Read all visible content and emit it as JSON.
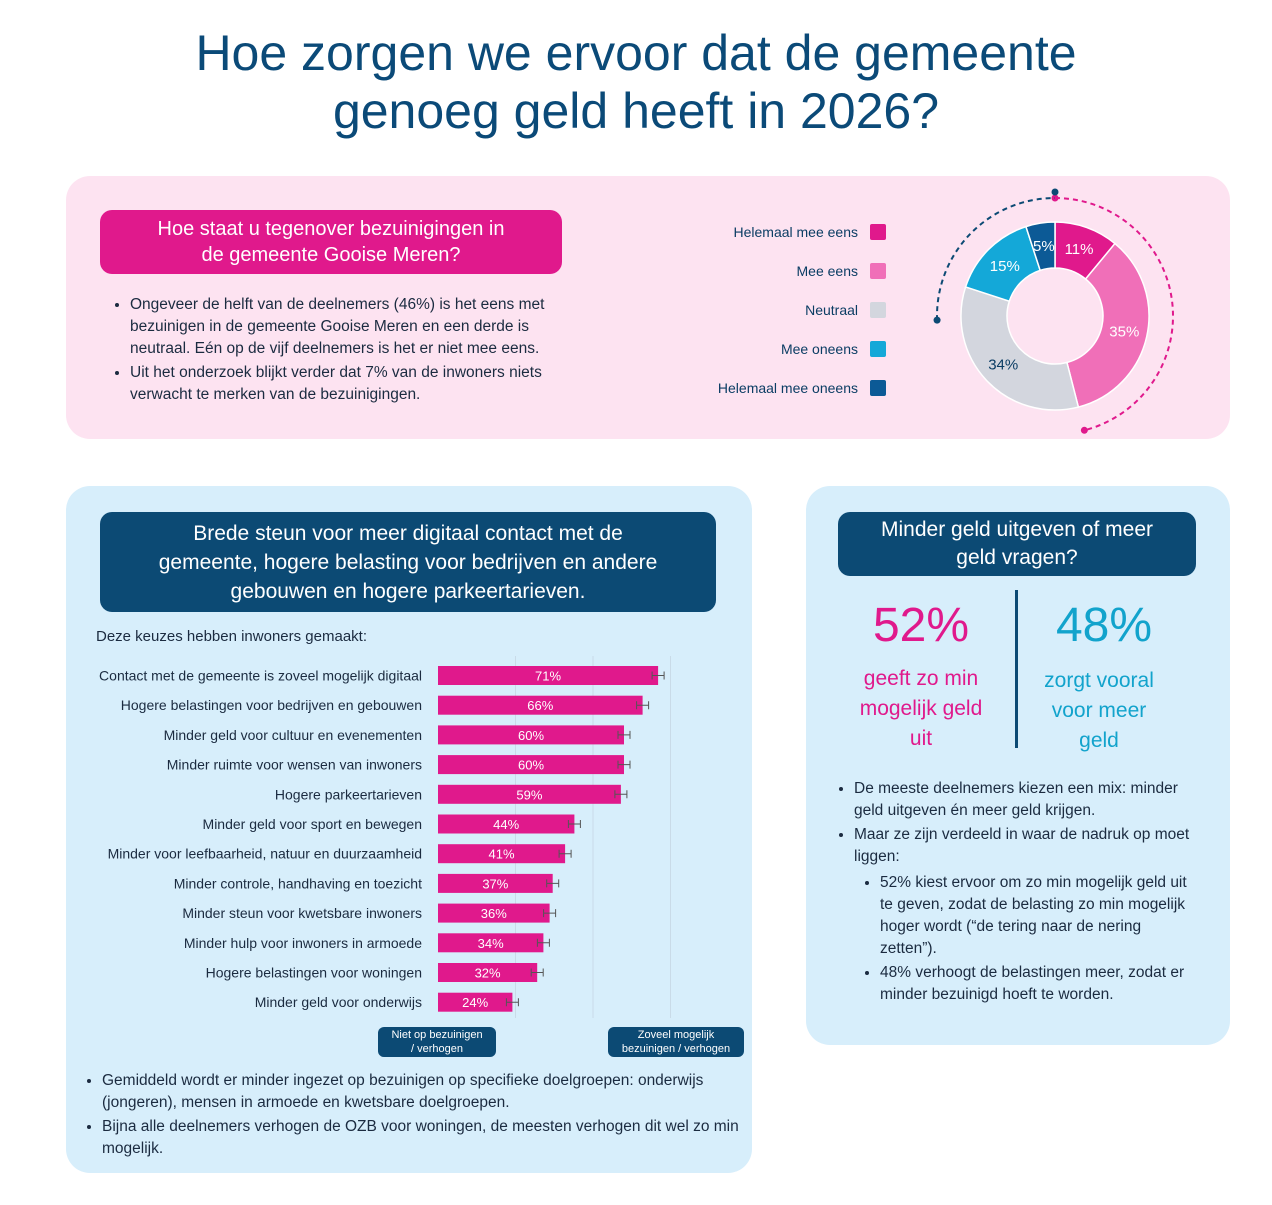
{
  "title_line1": "Hoe zorgen we ervoor dat de gemeente",
  "title_line2": "genoeg geld heeft in 2026?",
  "top": {
    "heading_line1": "Hoe staat u tegenover bezuinigingen in",
    "heading_line2": "de gemeente Gooise Meren?",
    "bullets": [
      "Ongeveer de helft van de deelnemers (46%) is het eens met bezuinigen in de gemeente Gooise Meren en een derde is neutraal.  Eén op de vijf deelnemers is het er niet mee eens.",
      "Uit het onderzoek blijkt verder dat 7% van de inwoners niets verwacht te merken van de bezuinigingen."
    ]
  },
  "left": {
    "heading_line1": "Brede steun voor meer digitaal contact met de",
    "heading_line2": "gemeente, hogere belasting voor bedrijven en andere",
    "heading_line3": "gebouwen en hogere parkeertarieven.",
    "choices_label": "Deze keuzes hebben inwoners gemaakt:",
    "scale_left_line1": "Niet op bezuinigen",
    "scale_left_line2": "/ verhogen",
    "scale_right_line1": "Zoveel mogelijk",
    "scale_right_line2": "bezuinigen / verhogen",
    "bullets": [
      "Gemiddeld wordt er minder ingezet op bezuinigen op specifieke doelgroepen: onderwijs (jongeren), mensen in armoede en kwetsbare doelgroepen.",
      "Bijna alle deelnemers verhogen de OZB voor woningen, de meesten verhogen dit wel zo min mogelijk."
    ]
  },
  "right": {
    "heading_line1": "Minder geld uitgeven of meer",
    "heading_line2": "geld vragen?",
    "pct_a": "52%",
    "desc_a_line1": "geeft zo min",
    "desc_a_line2": "mogelijk geld",
    "desc_a_line3": "uit",
    "pct_b": "48%",
    "desc_b_line1": "zorgt vooral",
    "desc_b_line2": "voor meer",
    "desc_b_line3": "geld",
    "bullets": [
      "De meeste deelnemers  kiezen een mix: minder geld uitgeven én meer geld krijgen.",
      "Maar ze zijn verdeeld in waar de nadruk op moet liggen:"
    ],
    "sub_bullets": [
      "52% kiest ervoor om zo min mogelijk geld uit te geven, zodat de belasting zo min mogelijk hoger wordt (“de tering naar de nering zetten”).",
      "48% verhoogt de belastingen meer, zodat er minder bezuinigd hoeft te worden."
    ]
  },
  "colors": {
    "magenta": "#e0198c",
    "pink": "#f06fb8",
    "grey": "#d3d6de",
    "cyan": "#14a8d8",
    "navy": "#0c5a96",
    "bar": "#e0198c",
    "pct_b": "#12a3cc"
  },
  "chart_data": [
    {
      "type": "pie",
      "variant": "donut",
      "legend_position": "left",
      "slices": [
        {
          "name": "Helemaal mee eens",
          "value": 11,
          "label": "11%",
          "color": "#e0198c"
        },
        {
          "name": "Mee eens",
          "value": 35,
          "label": "35%",
          "color": "#f06fb8"
        },
        {
          "name": "Neutraal",
          "value": 34,
          "label": "34%",
          "color": "#d3d6de"
        },
        {
          "name": "Mee oneens",
          "value": 15,
          "label": "15%",
          "color": "#14a8d8"
        },
        {
          "name": "Helemaal mee oneens",
          "value": 5,
          "label": "5%",
          "color": "#0c5a96"
        }
      ]
    },
    {
      "type": "bar",
      "orientation": "horizontal",
      "xlim": [
        0,
        100
      ],
      "error_bars": true,
      "categories": [
        "Contact met de gemeente is zoveel mogelijk digitaal",
        "Hogere belastingen voor bedrijven en gebouwen",
        "Minder geld voor cultuur en evenementen",
        "Minder ruimte voor wensen van inwoners",
        "Hogere parkeertarieven",
        "Minder geld voor sport en bewegen",
        "Minder voor leefbaarheid, natuur en duurzaamheid",
        "Minder controle, handhaving en toezicht",
        "Minder steun voor kwetsbare inwoners",
        "Minder hulp voor inwoners in armoede",
        "Hogere belastingen voor woningen",
        "Minder geld voor onderwijs"
      ],
      "values": [
        71,
        66,
        60,
        60,
        59,
        44,
        41,
        37,
        36,
        34,
        32,
        24
      ],
      "labels": [
        "71%",
        "66%",
        "60%",
        "60%",
        "59%",
        "44%",
        "41%",
        "37%",
        "36%",
        "34%",
        "32%",
        "24%"
      ]
    }
  ]
}
